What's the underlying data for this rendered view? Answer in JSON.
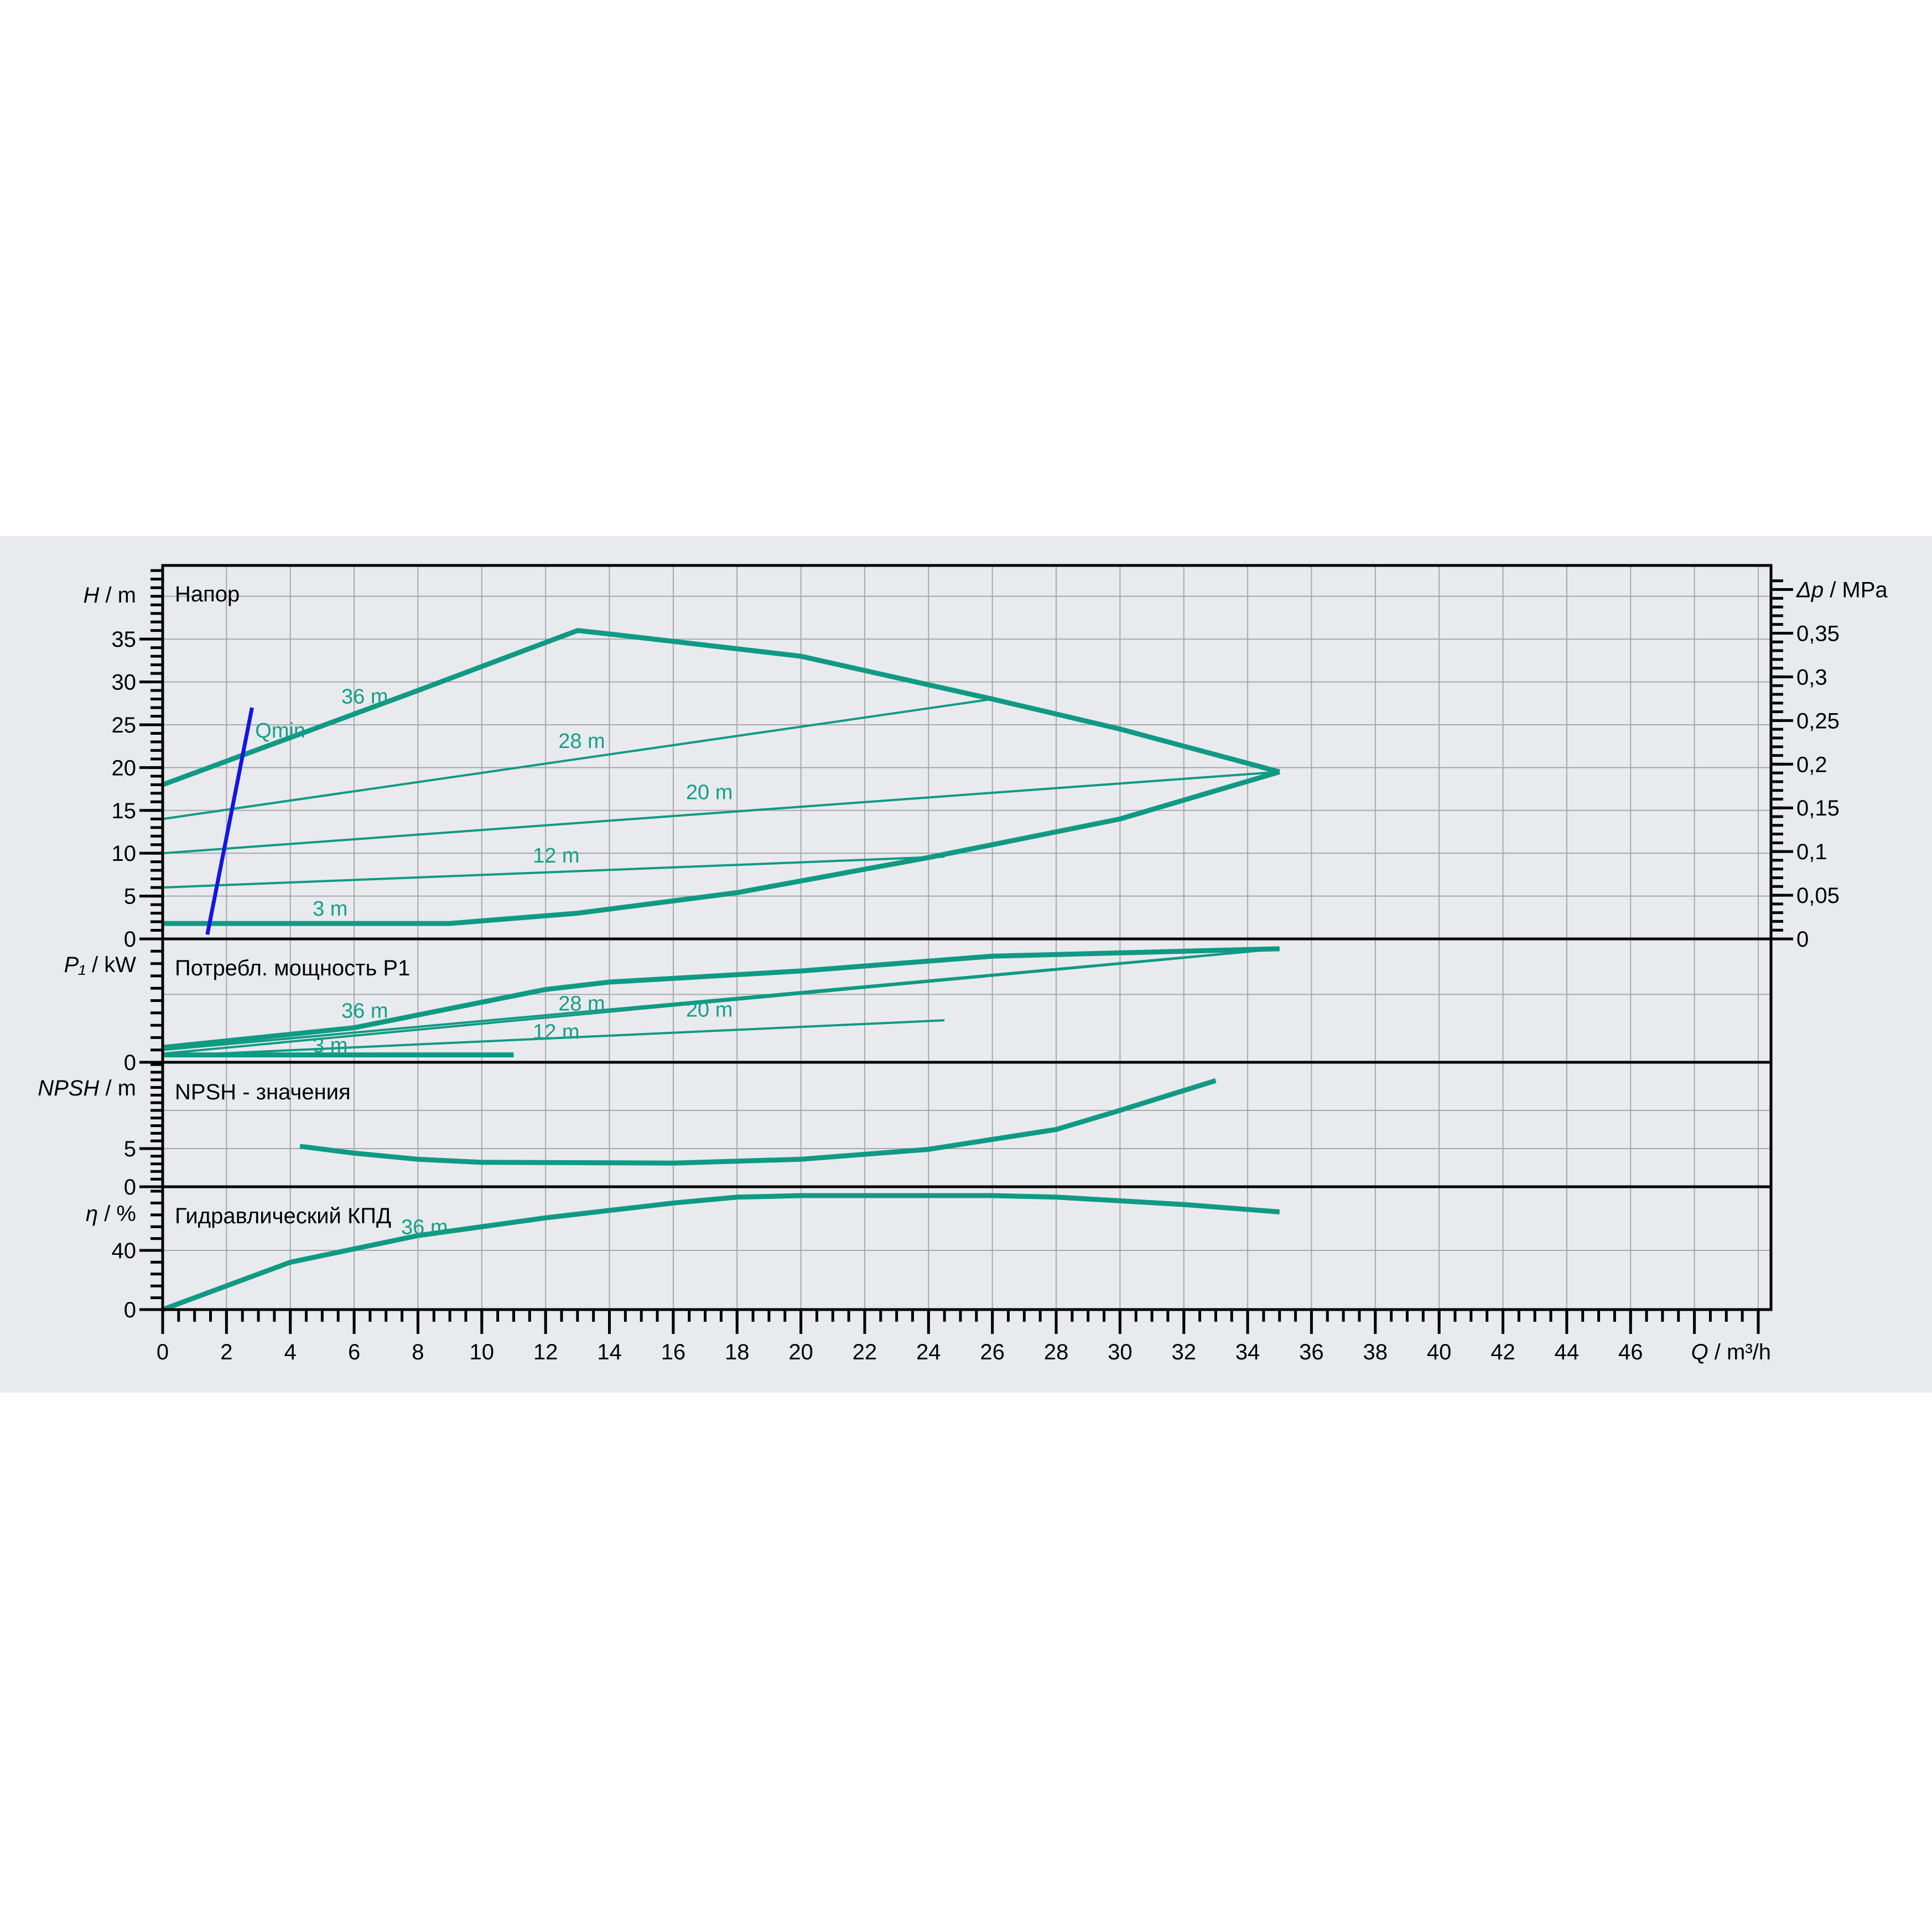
{
  "colors": {
    "background_band": "#e9eaed",
    "curve": "#0f9a84",
    "qmin": "#1414e6",
    "grid": "#a8a8a8",
    "axis": "#000000"
  },
  "chart_data": [
    {
      "type": "line",
      "title": "Напор",
      "ylabel": {
        "symbol": "H",
        "unit": "m"
      },
      "y2label": {
        "symbol": "Δp",
        "unit": "MPa"
      },
      "ylim": [
        0,
        43.6
      ],
      "yticks": [
        0,
        5,
        10,
        15,
        20,
        25,
        30,
        35
      ],
      "y2ticks": [
        "0",
        "0,05",
        "0,1",
        "0,15",
        "0,2",
        "0,25",
        "0,3",
        "0,35"
      ],
      "y2ticks_values": [
        0,
        0.05,
        0.1,
        0.15,
        0.2,
        0.25,
        0.3,
        0.35
      ],
      "grid": true,
      "series": [
        {
          "name": "36 m",
          "x": [
            0,
            4,
            8,
            13,
            14,
            20,
            26,
            30,
            33,
            35
          ],
          "y": [
            18,
            23.5,
            29,
            36,
            35.6,
            33,
            28,
            24.5,
            21.5,
            19.5
          ],
          "bold": true
        },
        {
          "name": "28 m",
          "x": [
            0,
            26
          ],
          "y": [
            14,
            28
          ]
        },
        {
          "name": "20 m",
          "x": [
            0,
            35
          ],
          "y": [
            10,
            19.5
          ]
        },
        {
          "name": "12 m",
          "x": [
            0,
            24.5
          ],
          "y": [
            6,
            9.6
          ]
        },
        {
          "name": "3 m",
          "x": [
            0,
            9,
            13,
            18,
            24,
            30,
            35
          ],
          "y": [
            1.8,
            1.8,
            3,
            5.4,
            9.5,
            14,
            19.5
          ],
          "bold": true
        },
        {
          "name": "Qmin",
          "x": [
            1.4,
            2.8
          ],
          "y": [
            0.5,
            27
          ],
          "color": "qmin"
        }
      ],
      "labels": [
        {
          "text": "36 m",
          "x": 5.6,
          "y": 27.5
        },
        {
          "text": "28 m",
          "x": 12.4,
          "y": 22.3
        },
        {
          "text": "20 m",
          "x": 16.4,
          "y": 16.3
        },
        {
          "text": "12 m",
          "x": 11.6,
          "y": 8.9
        },
        {
          "text": "3 m",
          "x": 4.7,
          "y": 2.7
        },
        {
          "text": "Qmin",
          "x": 2.9,
          "y": 23.5
        }
      ]
    },
    {
      "type": "line",
      "title": "Потребл. мощность P1",
      "ylabel": {
        "symbol": "P₁",
        "unit": "kW"
      },
      "ylim": [
        0,
        1
      ],
      "yticks": [
        0
      ],
      "grid": true,
      "series": [
        {
          "name": "36 m",
          "x": [
            0,
            6,
            12,
            14,
            20,
            26,
            35
          ],
          "y": [
            0.12,
            0.28,
            0.59,
            0.65,
            0.74,
            0.86,
            0.92
          ],
          "bold": true
        },
        {
          "name": "28 m",
          "x": [
            0,
            35
          ],
          "y": [
            0.1,
            0.92
          ]
        },
        {
          "name": "20 m",
          "x": [
            0,
            35
          ],
          "y": [
            0.07,
            0.92
          ]
        },
        {
          "name": "12 m",
          "x": [
            0,
            24.5
          ],
          "y": [
            0.05,
            0.34
          ]
        },
        {
          "name": "3 m",
          "x": [
            0,
            11
          ],
          "y": [
            0.06,
            0.06
          ],
          "bold": true
        }
      ],
      "labels": [
        {
          "text": "36 m",
          "x": 5.6,
          "y": 0.36
        },
        {
          "text": "28 m",
          "x": 12.4,
          "y": 0.42
        },
        {
          "text": "20 m",
          "x": 16.4,
          "y": 0.37
        },
        {
          "text": "12 m",
          "x": 11.6,
          "y": 0.19
        },
        {
          "text": "3 m",
          "x": 4.7,
          "y": 0.08
        }
      ]
    },
    {
      "type": "line",
      "title": "NPSH - значения",
      "ylabel": {
        "symbol": "NPSH",
        "unit": "m"
      },
      "ylim": [
        0,
        16.3
      ],
      "yticks": [
        0,
        5
      ],
      "grid": true,
      "series": [
        {
          "x": [
            4.3,
            6,
            8,
            10,
            16,
            20,
            24,
            28,
            30,
            33
          ],
          "y": [
            5.3,
            4.4,
            3.6,
            3.2,
            3.1,
            3.6,
            4.9,
            7.5,
            10,
            13.9
          ],
          "bold": true
        }
      ],
      "labels": []
    },
    {
      "type": "line",
      "title": "Гидравлический КПД",
      "ylabel": {
        "symbol": "η",
        "unit": "%"
      },
      "xlabel": {
        "symbol": "Q",
        "unit": "m³/h"
      },
      "ylim": [
        0,
        83
      ],
      "yticks": [
        0,
        40
      ],
      "xlim": [
        0,
        50.4
      ],
      "xticks": [
        0,
        2,
        4,
        6,
        8,
        10,
        12,
        14,
        16,
        18,
        20,
        22,
        24,
        26,
        28,
        30,
        32,
        34,
        36,
        38,
        40,
        42,
        44,
        46
      ],
      "grid": true,
      "series": [
        {
          "name": "36 m",
          "x": [
            0,
            4,
            8,
            12,
            16,
            18,
            20,
            26,
            28,
            32,
            35
          ],
          "y": [
            0,
            32,
            50,
            62,
            72,
            76,
            77,
            77,
            76,
            71,
            66
          ],
          "bold": true
        }
      ],
      "labels": [
        {
          "text": "36 m",
          "x": 5.6,
          "y": 51
        }
      ]
    }
  ]
}
